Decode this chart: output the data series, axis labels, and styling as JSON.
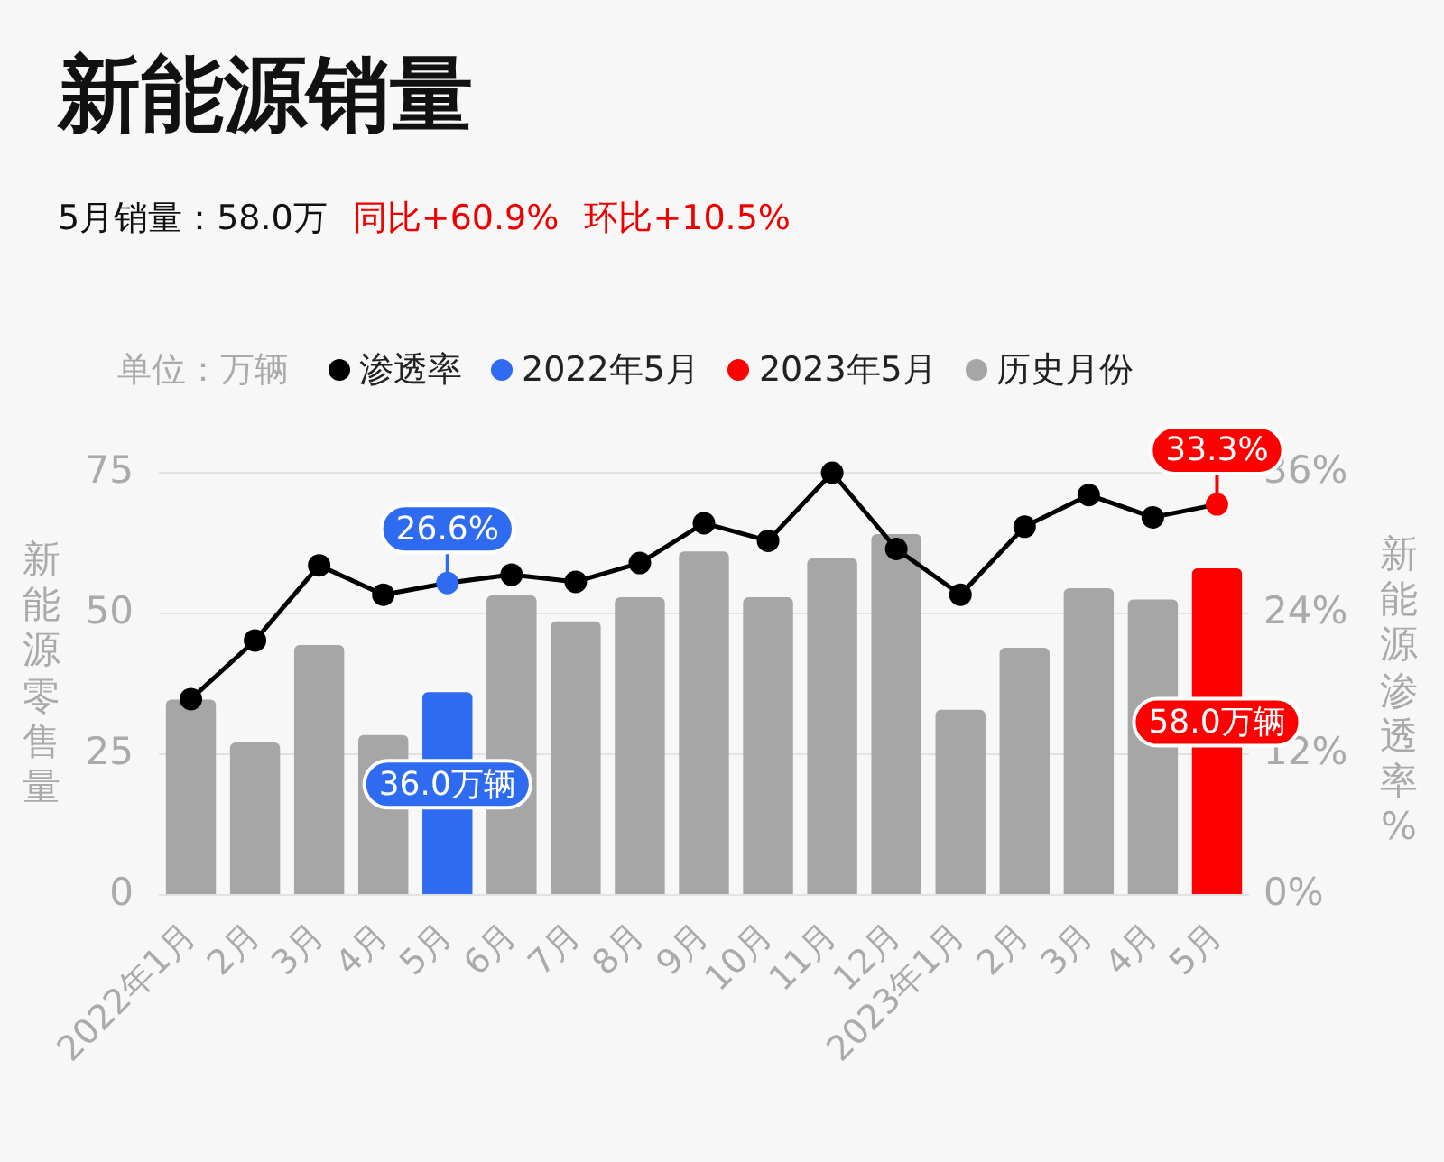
{
  "chart_data": {
    "type": "bar",
    "title": "新能源销量",
    "subtitle": "5月销量：58.0万",
    "annotations": [
      "同比+60.9%",
      "环比+10.5%"
    ],
    "legend_title": "单位：万辆",
    "ylabel": "新能源零售量",
    "y2label": "新能源渗透率%",
    "categories": [
      "2022年1月",
      "2月",
      "3月",
      "4月",
      "5月",
      "6月",
      "7月",
      "8月",
      "9月",
      "10月",
      "11月",
      "12月",
      "2023年1月",
      "2月",
      "3月",
      "4月",
      "5月"
    ],
    "stacked": true,
    "grid": "y",
    "legend": "top",
    "marker": "circle",
    "line_style": "solid",
    "ylim": [
      0,
      75
    ],
    "yticks": [
      0,
      25,
      50,
      75
    ],
    "y2lim": [
      0,
      36
    ],
    "y2ticks": [
      {
        "value": 0,
        "label": "0%"
      },
      {
        "value": 12,
        "label": "12%"
      },
      {
        "value": 24,
        "label": "24%"
      },
      {
        "value": 36,
        "label": "36%"
      }
    ],
    "series": [
      {
        "name": "渗透率",
        "type": "line",
        "axis": "y2",
        "color": "#000000",
        "colors": [
          "#000000",
          "#000000",
          "#000000",
          "#000000",
          "#2f6bf0",
          "#000000",
          "#000000",
          "#000000",
          "#000000",
          "#000000",
          "#000000",
          "#000000",
          "#000000",
          "#000000",
          "#000000",
          "#000000",
          "#ff0000"
        ],
        "values": [
          16.7,
          21.7,
          28.1,
          25.6,
          26.6,
          27.3,
          26.7,
          28.3,
          31.7,
          30.2,
          36.0,
          29.5,
          25.6,
          31.4,
          34.1,
          32.2,
          33.3
        ],
        "value_labels": [
          null,
          null,
          null,
          null,
          "26.6%",
          null,
          null,
          null,
          null,
          null,
          null,
          null,
          null,
          null,
          null,
          null,
          "33.3%"
        ]
      },
      {
        "name": "2022年5月",
        "type": "bar",
        "color": "#2f6bf0",
        "values": [
          null,
          null,
          null,
          null,
          36.0,
          null,
          null,
          null,
          null,
          null,
          null,
          null,
          null,
          null,
          null,
          null,
          null
        ],
        "value_labels": [
          null,
          null,
          null,
          null,
          "36.0万辆",
          null,
          null,
          null,
          null,
          null,
          null,
          null,
          null,
          null,
          null,
          null,
          null
        ]
      },
      {
        "name": "2023年5月",
        "type": "bar",
        "color": "#ff0000",
        "values": [
          null,
          null,
          null,
          null,
          null,
          null,
          null,
          null,
          null,
          null,
          null,
          null,
          null,
          null,
          null,
          null,
          58.0
        ],
        "value_labels": [
          null,
          null,
          null,
          null,
          null,
          null,
          null,
          null,
          null,
          null,
          null,
          null,
          null,
          null,
          null,
          null,
          "58.0万辆"
        ]
      },
      {
        "name": "历史月份",
        "type": "bar",
        "color": "#a6a6a6",
        "values": [
          34.7,
          27.1,
          44.4,
          28.4,
          null,
          53.2,
          48.6,
          52.9,
          61.0,
          52.9,
          59.8,
          64.1,
          32.9,
          43.9,
          54.5,
          52.5,
          null
        ]
      }
    ]
  }
}
